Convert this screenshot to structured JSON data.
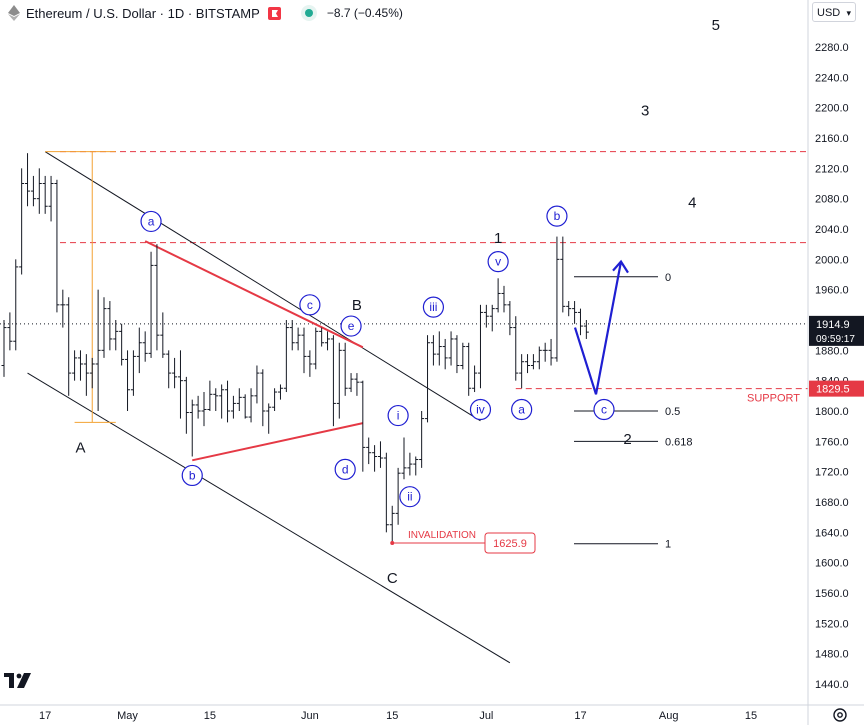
{
  "header": {
    "symbol": "Ethereum / U.S. Dollar · 1D · BITSTAMP",
    "change": "−8.7 (−0.45%)",
    "eth_icon": "ethereum-icon",
    "flag_icon": "flag-icon",
    "status_icon": "market-status-dot-icon"
  },
  "currency": "USD",
  "colors": {
    "wave_label": "#1f1fd2",
    "red": "#e53945",
    "blue_arrow": "#1f1fd2",
    "fib_orange": "#f2a233",
    "text": "#131722"
  },
  "chart_data": {
    "type": "candlestick",
    "symbol": "ETH/USD",
    "timeframe": "1D",
    "ylim": [
      1420,
      2340
    ],
    "x_range": [
      "2023-04-10",
      "2023-08-24"
    ],
    "y_ticks": [
      "2280.0",
      "2240.0",
      "2200.0",
      "2160.0",
      "2120.0",
      "2080.0",
      "2040.0",
      "2000.0",
      "1960.0",
      "1920.0",
      "1880.0",
      "1840.0",
      "1800.0",
      "1760.0",
      "1720.0",
      "1680.0",
      "1640.0",
      "1600.0",
      "1560.0",
      "1520.0",
      "1480.0",
      "1440.0"
    ],
    "x_ticks": [
      {
        "date": "2023-04-17",
        "label": "17"
      },
      {
        "date": "2023-05-01",
        "label": "May"
      },
      {
        "date": "2023-05-15",
        "label": "15"
      },
      {
        "date": "2023-06-01",
        "label": "Jun"
      },
      {
        "date": "2023-06-15",
        "label": "15"
      },
      {
        "date": "2023-07-01",
        "label": "Jul"
      },
      {
        "date": "2023-07-17",
        "label": "17"
      },
      {
        "date": "2023-08-01",
        "label": "Aug"
      },
      {
        "date": "2023-08-15",
        "label": "15"
      }
    ],
    "last_price": {
      "value": 1914.9,
      "label": "1914.9",
      "countdown": "09:59:17"
    },
    "support_price": {
      "value": 1829.5,
      "label": "1829.5",
      "text": "SUPPORT"
    },
    "invalidation": {
      "value": 1625.9,
      "label": "1625.9",
      "text": "INVALIDATION",
      "date": "2023-06-15"
    },
    "resistance_levels": [
      2142,
      2022
    ],
    "ohlc": [
      [
        "2023-04-10",
        1860,
        1920,
        1845,
        1910
      ],
      [
        "2023-04-11",
        1910,
        1930,
        1880,
        1892
      ],
      [
        "2023-04-12",
        1892,
        2000,
        1880,
        1990
      ],
      [
        "2023-04-13",
        1990,
        2120,
        1980,
        2100
      ],
      [
        "2023-04-14",
        2100,
        2140,
        2070,
        2090
      ],
      [
        "2023-04-15",
        2090,
        2110,
        2070,
        2080
      ],
      [
        "2023-04-16",
        2080,
        2120,
        2060,
        2100
      ],
      [
        "2023-04-17",
        2100,
        2110,
        2060,
        2070
      ],
      [
        "2023-04-18",
        2070,
        2110,
        2050,
        2100
      ],
      [
        "2023-04-19",
        2100,
        2105,
        1930,
        1940
      ],
      [
        "2023-04-20",
        1940,
        1960,
        1910,
        1940
      ],
      [
        "2023-04-21",
        1940,
        1950,
        1820,
        1850
      ],
      [
        "2023-04-22",
        1850,
        1880,
        1840,
        1870
      ],
      [
        "2023-04-23",
        1870,
        1880,
        1840,
        1862
      ],
      [
        "2023-04-24",
        1862,
        1875,
        1820,
        1850
      ],
      [
        "2023-04-25",
        1850,
        1870,
        1830,
        1862
      ],
      [
        "2023-04-26",
        1862,
        1960,
        1800,
        1880
      ],
      [
        "2023-04-27",
        1880,
        1950,
        1870,
        1935
      ],
      [
        "2023-04-28",
        1935,
        1945,
        1880,
        1895
      ],
      [
        "2023-04-29",
        1895,
        1920,
        1880,
        1905
      ],
      [
        "2023-04-30",
        1905,
        1915,
        1860,
        1868
      ],
      [
        "2023-05-01",
        1868,
        1880,
        1800,
        1828
      ],
      [
        "2023-05-02",
        1828,
        1880,
        1820,
        1872
      ],
      [
        "2023-05-03",
        1872,
        1910,
        1850,
        1890
      ],
      [
        "2023-05-04",
        1890,
        1905,
        1865,
        1876
      ],
      [
        "2023-05-05",
        1876,
        2010,
        1870,
        1992
      ],
      [
        "2023-05-06",
        1992,
        2020,
        1880,
        1900
      ],
      [
        "2023-05-07",
        1900,
        1930,
        1870,
        1875
      ],
      [
        "2023-05-08",
        1875,
        1880,
        1830,
        1850
      ],
      [
        "2023-05-09",
        1850,
        1870,
        1830,
        1845
      ],
      [
        "2023-05-10",
        1845,
        1880,
        1790,
        1840
      ],
      [
        "2023-05-11",
        1840,
        1845,
        1770,
        1798
      ],
      [
        "2023-05-12",
        1798,
        1815,
        1740,
        1808
      ],
      [
        "2023-05-13",
        1808,
        1820,
        1790,
        1800
      ],
      [
        "2023-05-14",
        1800,
        1825,
        1780,
        1802
      ],
      [
        "2023-05-15",
        1802,
        1840,
        1800,
        1822
      ],
      [
        "2023-05-16",
        1822,
        1830,
        1800,
        1820
      ],
      [
        "2023-05-17",
        1820,
        1835,
        1790,
        1828
      ],
      [
        "2023-05-18",
        1828,
        1840,
        1785,
        1800
      ],
      [
        "2023-05-19",
        1800,
        1820,
        1790,
        1810
      ],
      [
        "2023-05-20",
        1810,
        1830,
        1800,
        1818
      ],
      [
        "2023-05-21",
        1818,
        1822,
        1790,
        1792
      ],
      [
        "2023-05-22",
        1792,
        1830,
        1785,
        1820
      ],
      [
        "2023-05-23",
        1820,
        1860,
        1810,
        1850
      ],
      [
        "2023-05-24",
        1850,
        1855,
        1780,
        1800
      ],
      [
        "2023-05-25",
        1800,
        1810,
        1770,
        1805
      ],
      [
        "2023-05-26",
        1805,
        1830,
        1800,
        1825
      ],
      [
        "2023-05-27",
        1825,
        1835,
        1815,
        1830
      ],
      [
        "2023-05-28",
        1830,
        1920,
        1825,
        1910
      ],
      [
        "2023-05-29",
        1910,
        1920,
        1880,
        1890
      ],
      [
        "2023-05-30",
        1890,
        1910,
        1880,
        1900
      ],
      [
        "2023-05-31",
        1900,
        1910,
        1850,
        1872
      ],
      [
        "2023-06-01",
        1872,
        1880,
        1845,
        1862
      ],
      [
        "2023-06-02",
        1862,
        1910,
        1855,
        1905
      ],
      [
        "2023-06-03",
        1905,
        1910,
        1885,
        1890
      ],
      [
        "2023-06-04",
        1890,
        1905,
        1880,
        1895
      ],
      [
        "2023-06-05",
        1895,
        1900,
        1780,
        1810
      ],
      [
        "2023-06-06",
        1810,
        1890,
        1790,
        1880
      ],
      [
        "2023-06-07",
        1880,
        1890,
        1820,
        1830
      ],
      [
        "2023-06-08",
        1830,
        1850,
        1825,
        1842
      ],
      [
        "2023-06-09",
        1842,
        1850,
        1820,
        1838
      ],
      [
        "2023-06-10",
        1838,
        1840,
        1720,
        1752
      ],
      [
        "2023-06-11",
        1752,
        1765,
        1730,
        1745
      ],
      [
        "2023-06-12",
        1745,
        1755,
        1720,
        1740
      ],
      [
        "2023-06-13",
        1740,
        1760,
        1725,
        1738
      ],
      [
        "2023-06-14",
        1738,
        1745,
        1640,
        1650
      ],
      [
        "2023-06-15",
        1650,
        1675,
        1625.9,
        1665
      ],
      [
        "2023-06-16",
        1665,
        1725,
        1650,
        1718
      ],
      [
        "2023-06-17",
        1718,
        1765,
        1710,
        1725
      ],
      [
        "2023-06-18",
        1725,
        1745,
        1715,
        1730
      ],
      [
        "2023-06-19",
        1730,
        1740,
        1715,
        1736
      ],
      [
        "2023-06-20",
        1736,
        1800,
        1725,
        1790
      ],
      [
        "2023-06-21",
        1790,
        1900,
        1785,
        1890
      ],
      [
        "2023-06-22",
        1890,
        1900,
        1860,
        1875
      ],
      [
        "2023-06-23",
        1875,
        1905,
        1860,
        1885
      ],
      [
        "2023-06-24",
        1885,
        1895,
        1855,
        1870
      ],
      [
        "2023-06-25",
        1870,
        1905,
        1860,
        1895
      ],
      [
        "2023-06-26",
        1895,
        1900,
        1850,
        1860
      ],
      [
        "2023-06-27",
        1860,
        1890,
        1855,
        1885
      ],
      [
        "2023-06-28",
        1885,
        1890,
        1820,
        1830
      ],
      [
        "2023-06-29",
        1830,
        1860,
        1825,
        1850
      ],
      [
        "2023-06-30",
        1850,
        1940,
        1830,
        1930
      ],
      [
        "2023-07-01",
        1930,
        1940,
        1910,
        1925
      ],
      [
        "2023-07-02",
        1925,
        1940,
        1905,
        1935
      ],
      [
        "2023-07-03",
        1935,
        1975,
        1930,
        1955
      ],
      [
        "2023-07-04",
        1955,
        1965,
        1930,
        1940
      ],
      [
        "2023-07-05",
        1940,
        1945,
        1900,
        1910
      ],
      [
        "2023-07-06",
        1910,
        1925,
        1840,
        1850
      ],
      [
        "2023-07-07",
        1850,
        1875,
        1830,
        1865
      ],
      [
        "2023-07-08",
        1865,
        1875,
        1850,
        1860
      ],
      [
        "2023-07-09",
        1860,
        1875,
        1855,
        1865
      ],
      [
        "2023-07-10",
        1865,
        1885,
        1855,
        1880
      ],
      [
        "2023-07-11",
        1880,
        1890,
        1865,
        1880
      ],
      [
        "2023-07-12",
        1880,
        1895,
        1860,
        1870
      ],
      [
        "2023-07-13",
        1870,
        2030,
        1865,
        2000
      ],
      [
        "2023-07-14",
        2000,
        2030,
        1930,
        1938
      ],
      [
        "2023-07-15",
        1938,
        1945,
        1925,
        1935
      ],
      [
        "2023-07-16",
        1935,
        1945,
        1915,
        1930
      ],
      [
        "2023-07-17",
        1930,
        1935,
        1900,
        1912
      ],
      [
        "2023-07-18",
        1912,
        1920,
        1895,
        1904
      ]
    ]
  },
  "wave_labels": {
    "minor_circled": [
      {
        "text": "a",
        "date": "2023-05-05",
        "price": 2050
      },
      {
        "text": "b",
        "date": "2023-05-12",
        "price": 1715
      },
      {
        "text": "c",
        "date": "2023-06-01",
        "price": 1940
      },
      {
        "text": "d",
        "date": "2023-06-07",
        "price": 1723
      },
      {
        "text": "e",
        "date": "2023-06-08",
        "price": 1912
      },
      {
        "text": "a",
        "date": "2023-07-07",
        "price": 1802
      },
      {
        "text": "b",
        "date": "2023-07-13",
        "price": 2057
      },
      {
        "text": "c",
        "date": "2023-07-21",
        "price": 1802
      }
    ],
    "sub_circled": [
      {
        "text": "i",
        "date": "2023-06-16",
        "price": 1794
      },
      {
        "text": "ii",
        "date": "2023-06-18",
        "price": 1687
      },
      {
        "text": "iii",
        "date": "2023-06-22",
        "price": 1937
      },
      {
        "text": "iv",
        "date": "2023-06-30",
        "price": 1802
      },
      {
        "text": "v",
        "date": "2023-07-03",
        "price": 1997
      }
    ],
    "major": [
      {
        "text": "A",
        "date": "2023-04-23",
        "price": 1752
      },
      {
        "text": "B",
        "date": "2023-06-09",
        "price": 1940
      },
      {
        "text": "C",
        "date": "2023-06-15",
        "price": 1580
      },
      {
        "text": "1",
        "date": "2023-07-03",
        "price": 2028
      },
      {
        "text": "2",
        "date": "2023-07-25",
        "price": 1763
      },
      {
        "text": "3",
        "date": "2023-07-28",
        "price": 2196
      },
      {
        "text": "4",
        "date": "2023-08-05",
        "price": 2075
      },
      {
        "text": "5",
        "date": "2023-08-09",
        "price": 2309
      }
    ]
  },
  "fib_levels": [
    {
      "label": "0",
      "price": 1977
    },
    {
      "label": "0.5",
      "price": 1800
    },
    {
      "label": "0.618",
      "price": 1760
    },
    {
      "label": "1",
      "price": 1625
    }
  ]
}
